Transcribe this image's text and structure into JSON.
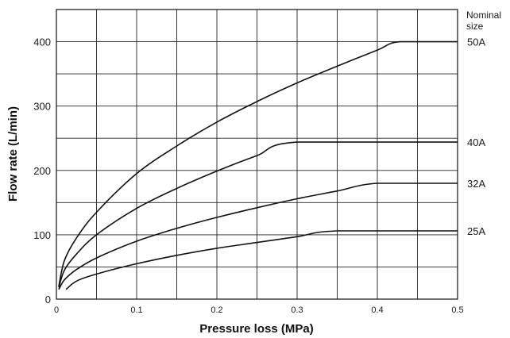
{
  "chart_data": {
    "type": "line",
    "xlabel": "Pressure loss (MPa)",
    "ylabel": "Flow rate (L/min)",
    "xlim": [
      0,
      0.5
    ],
    "ylim": [
      0,
      450
    ],
    "x_ticks": [
      "0",
      "0.1",
      "0.2",
      "0.3",
      "0.4",
      "0.5"
    ],
    "y_ticks": [
      "0",
      "100",
      "200",
      "300",
      "400"
    ],
    "grid": true,
    "legend_title": [
      "Nominal",
      "size"
    ],
    "series": [
      {
        "name": "50A",
        "x": [
          0.003,
          0.01,
          0.025,
          0.05,
          0.1,
          0.15,
          0.2,
          0.25,
          0.3,
          0.35,
          0.4,
          0.428,
          0.5
        ],
        "y": [
          20,
          60,
          95,
          135,
          195,
          238,
          275,
          307,
          336,
          362,
          387,
          400,
          400
        ]
      },
      {
        "name": "40A",
        "x": [
          0.003,
          0.01,
          0.025,
          0.05,
          0.1,
          0.15,
          0.2,
          0.25,
          0.3,
          0.5
        ],
        "y": [
          18,
          45,
          70,
          100,
          141,
          172,
          199,
          223,
          244,
          244
        ]
      },
      {
        "name": "32A",
        "x": [
          0.003,
          0.01,
          0.025,
          0.05,
          0.1,
          0.15,
          0.2,
          0.25,
          0.3,
          0.35,
          0.4,
          0.5
        ],
        "y": [
          15,
          30,
          46,
          64,
          90,
          110,
          127,
          142,
          156,
          168,
          180,
          180
        ]
      },
      {
        "name": "25A",
        "x": [
          0.012,
          0.025,
          0.05,
          0.1,
          0.15,
          0.2,
          0.25,
          0.3,
          0.35,
          0.5
        ],
        "y": [
          15,
          28,
          39,
          55,
          68,
          79,
          88,
          97,
          106,
          106
        ]
      }
    ]
  }
}
